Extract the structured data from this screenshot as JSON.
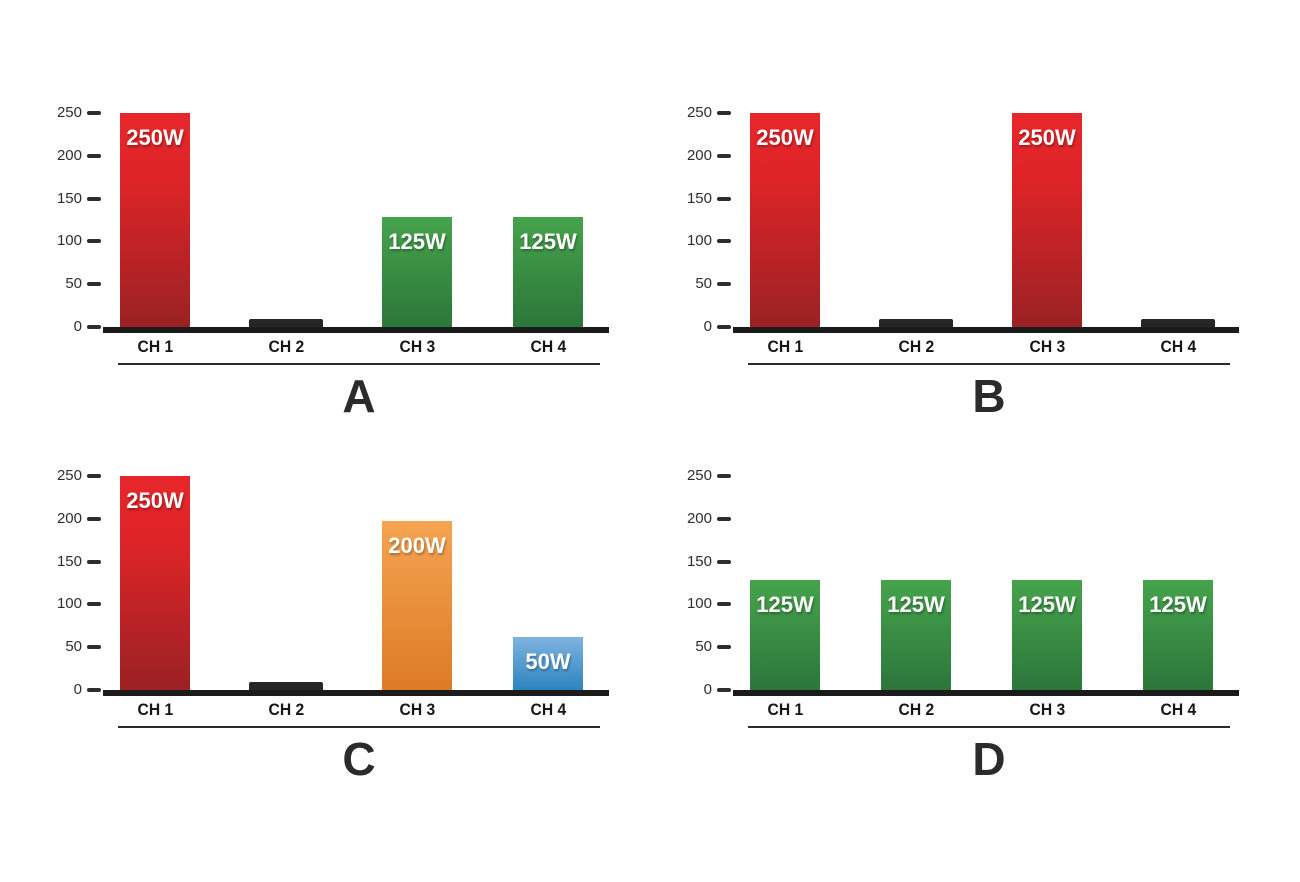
{
  "figure": {
    "background": "#ffffff",
    "unit": "W",
    "panel_letters": [
      "A",
      "B",
      "C",
      "D"
    ]
  },
  "palette": {
    "red_top": "#e7262b",
    "red_bottom": "#9b2124",
    "green_top": "#46a34c",
    "green_bottom": "#2c763a",
    "orange_top": "#f4a452",
    "orange_bottom": "#dd7b25",
    "blue_top": "#7fb3df",
    "blue_bottom": "#2d84c1",
    "stub_bar": "#262626",
    "axis_line": "#1b1b1b",
    "tick": "#2e2e2e",
    "value_label_text": "#ffffff",
    "panel_letter_text": "#2b2b2b"
  },
  "chart_data": [
    {
      "type": "bar",
      "panel_label": "A",
      "title": "",
      "xlabel": "",
      "ylabel": "",
      "ylim": [
        0,
        250
      ],
      "yticks": [
        0,
        50,
        100,
        150,
        200,
        250
      ],
      "grid": false,
      "legend": null,
      "categories": [
        "CH 1",
        "CH 2",
        "CH 3",
        "CH 4"
      ],
      "values": [
        250,
        0,
        125,
        125
      ],
      "value_labels": [
        "250W",
        "",
        "125W",
        "125W"
      ],
      "bar_colors": [
        "red",
        "stub",
        "green",
        "green"
      ],
      "bar_display_units": [
        250,
        9,
        129,
        129
      ]
    },
    {
      "type": "bar",
      "panel_label": "B",
      "title": "",
      "xlabel": "",
      "ylabel": "",
      "ylim": [
        0,
        250
      ],
      "yticks": [
        0,
        50,
        100,
        150,
        200,
        250
      ],
      "grid": false,
      "legend": null,
      "categories": [
        "CH 1",
        "CH 2",
        "CH 3",
        "CH 4"
      ],
      "values": [
        250,
        0,
        250,
        0
      ],
      "value_labels": [
        "250W",
        "",
        "250W",
        ""
      ],
      "bar_colors": [
        "red",
        "stub",
        "red",
        "stub"
      ],
      "bar_display_units": [
        250,
        9,
        250,
        9
      ]
    },
    {
      "type": "bar",
      "panel_label": "C",
      "title": "",
      "xlabel": "",
      "ylabel": "",
      "ylim": [
        0,
        250
      ],
      "yticks": [
        0,
        50,
        100,
        150,
        200,
        250
      ],
      "grid": false,
      "legend": null,
      "categories": [
        "CH 1",
        "CH 2",
        "CH 3",
        "CH 4"
      ],
      "values": [
        250,
        0,
        200,
        50
      ],
      "value_labels": [
        "250W",
        "",
        "200W",
        "50W"
      ],
      "bar_colors": [
        "red",
        "stub",
        "orange",
        "blue"
      ],
      "bar_display_units": [
        250,
        9,
        197,
        62
      ]
    },
    {
      "type": "bar",
      "panel_label": "D",
      "title": "",
      "xlabel": "",
      "ylabel": "",
      "ylim": [
        0,
        250
      ],
      "yticks": [
        0,
        50,
        100,
        150,
        200,
        250
      ],
      "grid": false,
      "legend": null,
      "categories": [
        "CH 1",
        "CH 2",
        "CH 3",
        "CH 4"
      ],
      "values": [
        125,
        125,
        125,
        125
      ],
      "value_labels": [
        "125W",
        "125W",
        "125W",
        "125W"
      ],
      "bar_colors": [
        "green",
        "green",
        "green",
        "green"
      ],
      "bar_display_units": [
        129,
        129,
        129,
        129
      ]
    }
  ]
}
